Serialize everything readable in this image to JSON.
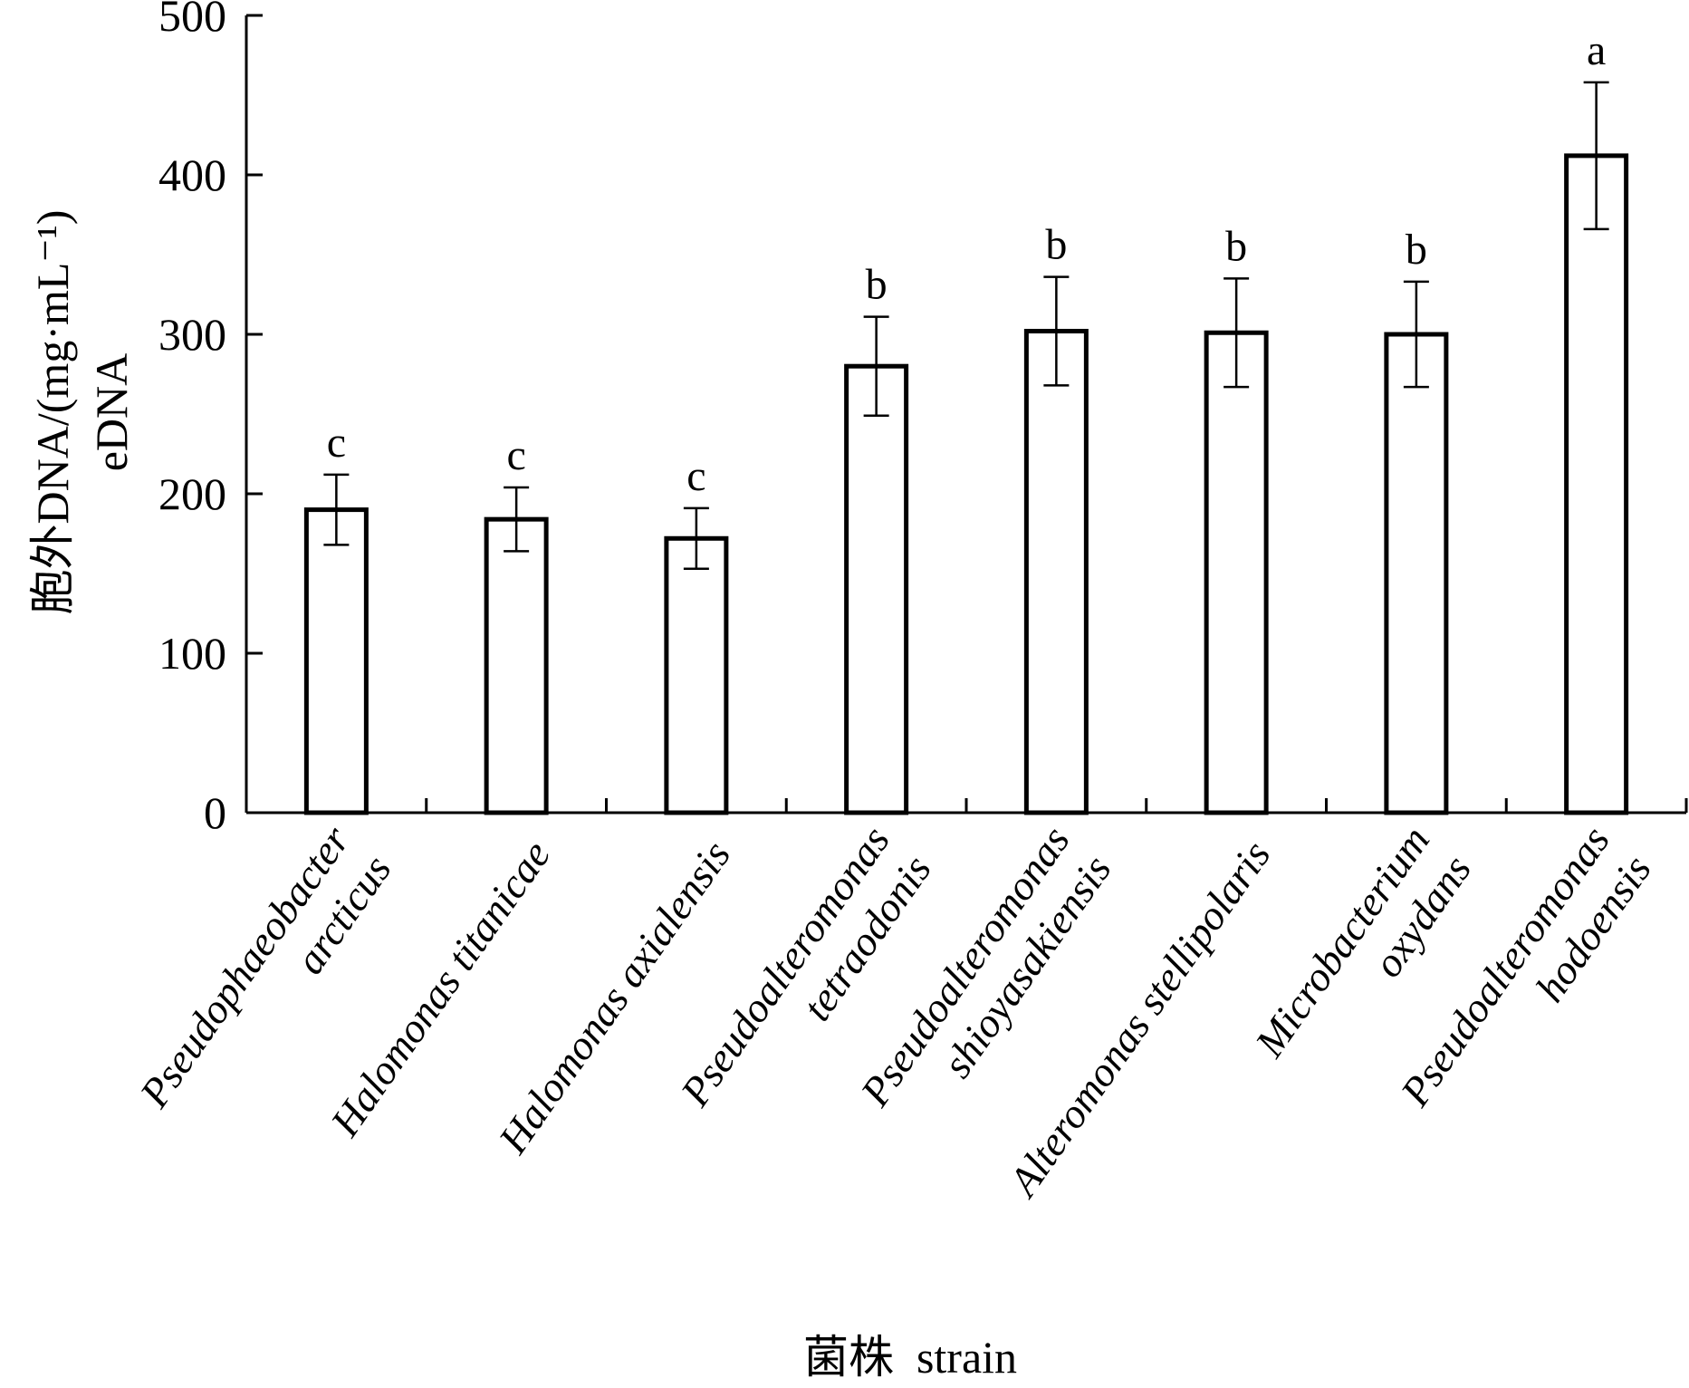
{
  "chart_data": {
    "type": "bar",
    "categories": [
      [
        "Pseudophaeobacter",
        "arcticus"
      ],
      [
        "Halomonas titanicae"
      ],
      [
        "Halomonas axialensis"
      ],
      [
        "Pseudoalteromonas",
        "tetraodonis"
      ],
      [
        "Pseudoalteromonas",
        "shioyasakiensis"
      ],
      [
        "Alteromonas stellipolaris"
      ],
      [
        "Microbacterium",
        "oxydans"
      ],
      [
        "Pseudoalteromonas",
        "hodoensis"
      ]
    ],
    "values": [
      190,
      184,
      172,
      280,
      302,
      301,
      300,
      412
    ],
    "errors": [
      22,
      20,
      19,
      31,
      34,
      34,
      33,
      46
    ],
    "significance": [
      "c",
      "c",
      "c",
      "b",
      "b",
      "b",
      "b",
      "a"
    ],
    "ylabel_line1": "胞外DNA/(mg·mL⁻¹)",
    "ylabel_line2": "eDNA",
    "xlabel": "菌株  strain",
    "ylim": [
      0,
      500
    ],
    "yticks": [
      0,
      100,
      200,
      300,
      400,
      500
    ],
    "grid": false,
    "legend": "none"
  }
}
